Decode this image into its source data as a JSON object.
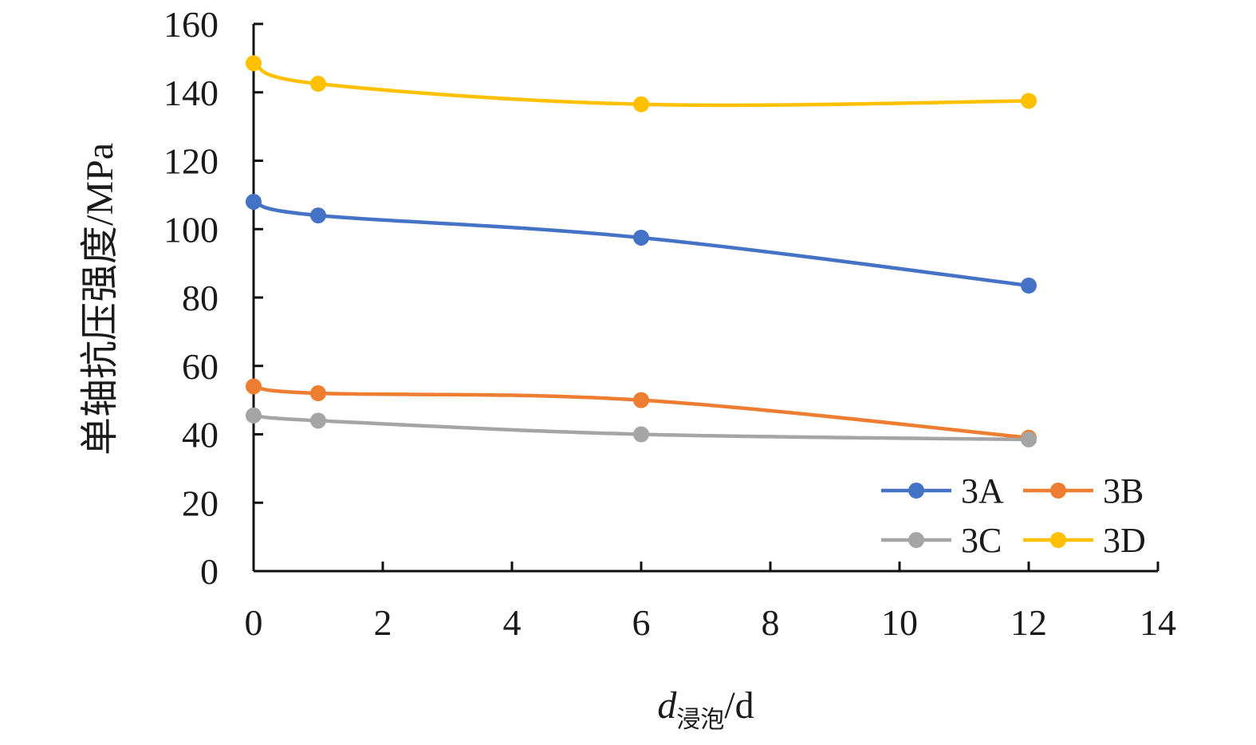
{
  "chart_data": {
    "type": "line",
    "x": [
      0,
      1,
      6,
      12
    ],
    "series": [
      {
        "name": "3A",
        "values": [
          108,
          104,
          97.5,
          83.5
        ],
        "color": "#4472c4"
      },
      {
        "name": "3B",
        "values": [
          54,
          52,
          50,
          39
        ],
        "color": "#ed7d31"
      },
      {
        "name": "3C",
        "values": [
          45.5,
          44,
          40,
          38.5
        ],
        "color": "#a5a5a5"
      },
      {
        "name": "3D",
        "values": [
          148.5,
          142.5,
          136.5,
          137.5
        ],
        "color": "#ffc000"
      }
    ],
    "xlim": [
      0,
      14
    ],
    "ylim": [
      0,
      160
    ],
    "xticks": [
      "0",
      "2",
      "4",
      "6",
      "8",
      "10",
      "12",
      "14"
    ],
    "yticks": [
      "0",
      "20",
      "40",
      "60",
      "80",
      "100",
      "120",
      "140",
      "160"
    ],
    "ylabel": "单轴抗压强度/MPa",
    "xlabel_main": "d",
    "xlabel_sub": "浸泡",
    "xlabel_unit": "/d",
    "legend": {
      "placement": "bottom-right",
      "columns": 2
    },
    "grid": false,
    "smooth": true
  }
}
